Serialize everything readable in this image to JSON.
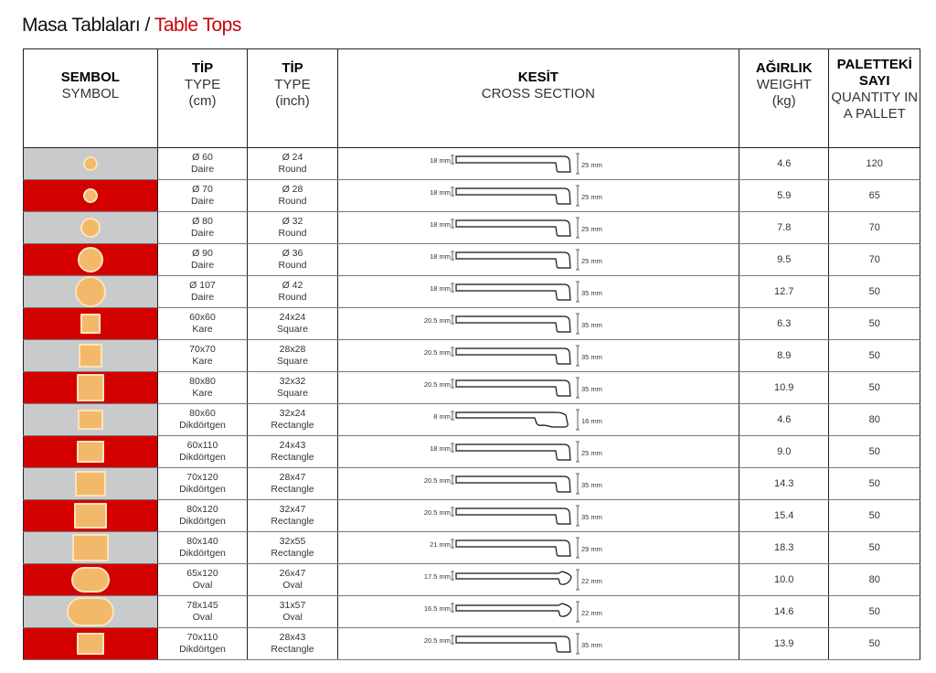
{
  "title": {
    "tr": "Masa Tablaları /",
    "en": "Table Tops"
  },
  "colors": {
    "accent_red": "#d40000",
    "gray": "#c9cacc",
    "wood": "#f3b96a"
  },
  "headers": {
    "symbol": {
      "tr": "SEMBOL",
      "en": "SYMBOL"
    },
    "type_cm": {
      "tr": "TİP",
      "en": "TYPE",
      "unit": "(cm)"
    },
    "type_inch": {
      "tr": "TİP",
      "en": "TYPE",
      "unit": "(inch)"
    },
    "section": {
      "tr": "KESİT",
      "en": "CROSS SECTION"
    },
    "weight": {
      "tr": "AĞIRLIK",
      "en": "WEIGHT",
      "unit": "(kg)"
    },
    "pallet": {
      "tr": "PALETTEKİ SAYI",
      "en": "QUANTITY IN A PALLET"
    }
  },
  "rows": [
    {
      "shape": "circle",
      "size": "small",
      "cm": "Ø 60",
      "cm_type": "Daire",
      "inch": "Ø 24",
      "inch_type": "Round",
      "top": "18 mm",
      "edge": "25 mm",
      "profile": "standard",
      "weight": "4.6",
      "qty": "120"
    },
    {
      "shape": "circle",
      "size": "small",
      "cm": "Ø 70",
      "cm_type": "Daire",
      "inch": "Ø 28",
      "inch_type": "Round",
      "top": "18 mm",
      "edge": "25 mm",
      "profile": "standard",
      "weight": "5.9",
      "qty": "65"
    },
    {
      "shape": "circle",
      "size": "medium",
      "cm": "Ø 80",
      "cm_type": "Daire",
      "inch": "Ø 32",
      "inch_type": "Round",
      "top": "18 mm",
      "edge": "25 mm",
      "profile": "standard",
      "weight": "7.8",
      "qty": "70"
    },
    {
      "shape": "circle",
      "size": "large",
      "cm": "Ø 90",
      "cm_type": "Daire",
      "inch": "Ø 36",
      "inch_type": "Round",
      "top": "18 mm",
      "edge": "25 mm",
      "profile": "standard",
      "weight": "9.5",
      "qty": "70"
    },
    {
      "shape": "circle",
      "size": "xlarge",
      "cm": "Ø 107",
      "cm_type": "Daire",
      "inch": "Ø 42",
      "inch_type": "Round",
      "top": "18 mm",
      "edge": "35 mm",
      "profile": "standard",
      "weight": "12.7",
      "qty": "50"
    },
    {
      "shape": "square",
      "size": "small",
      "cm": "60x60",
      "cm_type": "Kare",
      "inch": "24x24",
      "inch_type": "Square",
      "top": "20.5 mm",
      "edge": "35 mm",
      "profile": "standard",
      "weight": "6.3",
      "qty": "50"
    },
    {
      "shape": "square",
      "size": "medium",
      "cm": "70x70",
      "cm_type": "Kare",
      "inch": "28x28",
      "inch_type": "Square",
      "top": "20.5 mm",
      "edge": "35 mm",
      "profile": "standard",
      "weight": "8.9",
      "qty": "50"
    },
    {
      "shape": "square",
      "size": "large",
      "cm": "80x80",
      "cm_type": "Kare",
      "inch": "32x32",
      "inch_type": "Square",
      "top": "20.5 mm",
      "edge": "35 mm",
      "profile": "standard",
      "weight": "10.9",
      "qty": "50"
    },
    {
      "shape": "rect",
      "size": "r1",
      "cm": "80x60",
      "cm_type": "Dikdörtgen",
      "inch": "32x24",
      "inch_type": "Rectangle",
      "top": "8 mm",
      "edge": "16 mm",
      "profile": "thin",
      "weight": "4.6",
      "qty": "80"
    },
    {
      "shape": "rect",
      "size": "r2",
      "cm": "60x110",
      "cm_type": "Dikdörtgen",
      "inch": "24x43",
      "inch_type": "Rectangle",
      "top": "18 mm",
      "edge": "25 mm",
      "profile": "standard",
      "weight": "9.0",
      "qty": "50"
    },
    {
      "shape": "rect",
      "size": "r3",
      "cm": "70x120",
      "cm_type": "Dikdörtgen",
      "inch": "28x47",
      "inch_type": "Rectangle",
      "top": "20.5 mm",
      "edge": "35 mm",
      "profile": "standard",
      "weight": "14.3",
      "qty": "50"
    },
    {
      "shape": "rect",
      "size": "r4",
      "cm": "80x120",
      "cm_type": "Dikdörtgen",
      "inch": "32x47",
      "inch_type": "Rectangle",
      "top": "20.5 mm",
      "edge": "35 mm",
      "profile": "standard",
      "weight": "15.4",
      "qty": "50"
    },
    {
      "shape": "rect",
      "size": "r5",
      "cm": "80x140",
      "cm_type": "Dikdörtgen",
      "inch": "32x55",
      "inch_type": "Rectangle",
      "top": "21 mm",
      "edge": "29 mm",
      "profile": "standard",
      "weight": "18.3",
      "qty": "50"
    },
    {
      "shape": "oval",
      "size": "o1",
      "cm": "65x120",
      "cm_type": "Oval",
      "inch": "26x47",
      "inch_type": "Oval",
      "top": "17.5 mm",
      "edge": "22 mm",
      "profile": "oval",
      "weight": "10.0",
      "qty": "80"
    },
    {
      "shape": "oval",
      "size": "o2",
      "cm": "78x145",
      "cm_type": "Oval",
      "inch": "31x57",
      "inch_type": "Oval",
      "top": "16.5 mm",
      "edge": "22 mm",
      "profile": "oval",
      "weight": "14.6",
      "qty": "50"
    },
    {
      "shape": "rect",
      "size": "r2",
      "cm": "70x110",
      "cm_type": "Dikdörtgen",
      "inch": "28x43",
      "inch_type": "Rectangle",
      "top": "20.5 mm",
      "edge": "35 mm",
      "profile": "standard",
      "weight": "13.9",
      "qty": "50"
    }
  ]
}
